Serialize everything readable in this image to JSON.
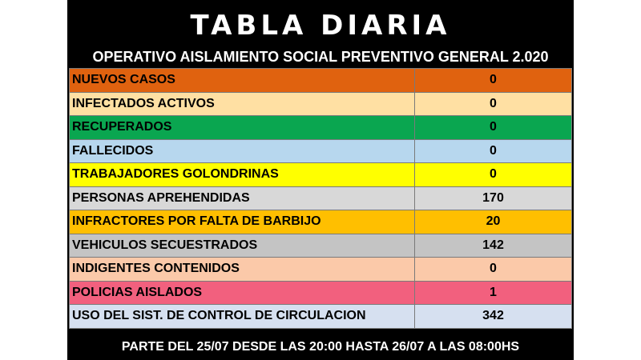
{
  "header": {
    "title": "TABLA DIARIA",
    "subtitle": "OPERATIVO AISLAMIENTO SOCIAL PREVENTIVO GENERAL 2.020"
  },
  "rows": [
    {
      "label": "NUEVOS CASOS",
      "value": "0",
      "color": "#e0620f"
    },
    {
      "label": "INFECTADOS ACTIVOS",
      "value": "0",
      "color": "#ffe0a3"
    },
    {
      "label": "RECUPERADOS",
      "value": "0",
      "color": "#0aa650"
    },
    {
      "label": "FALLECIDOS",
      "value": "0",
      "color": "#b7d7ee"
    },
    {
      "label": "TRABAJADORES GOLONDRINAS",
      "value": "0",
      "color": "#ffff00"
    },
    {
      "label": "PERSONAS APREHENDIDAS",
      "value": "170",
      "color": "#d8d8d8"
    },
    {
      "label": "INFRACTORES POR FALTA DE BARBIJO",
      "value": "20",
      "color": "#ffbf00"
    },
    {
      "label": "VEHICULOS SECUESTRADOS",
      "value": "142",
      "color": "#c4c4c4"
    },
    {
      "label": "INDIGENTES CONTENIDOS",
      "value": "0",
      "color": "#fbc9a9"
    },
    {
      "label": "POLICIAS AISLADOS",
      "value": "1",
      "color": "#f2607e"
    },
    {
      "label": "USO DEL SIST. DE CONTROL DE CIRCULACION",
      "value": "342",
      "color": "#d6e0f0"
    }
  ],
  "footer": {
    "text": "PARTE  DEL 25/07 DESDE LAS 20:00 HASTA 26/07 A LAS 08:00HS"
  }
}
